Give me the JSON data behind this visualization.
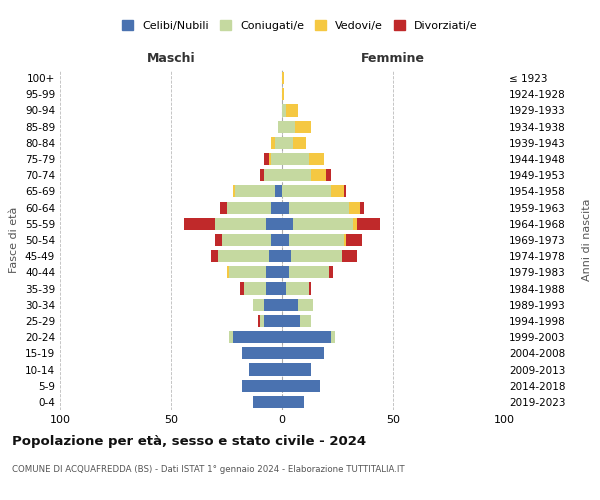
{
  "age_groups": [
    "0-4",
    "5-9",
    "10-14",
    "15-19",
    "20-24",
    "25-29",
    "30-34",
    "35-39",
    "40-44",
    "45-49",
    "50-54",
    "55-59",
    "60-64",
    "65-69",
    "70-74",
    "75-79",
    "80-84",
    "85-89",
    "90-94",
    "95-99",
    "100+"
  ],
  "birth_years": [
    "2019-2023",
    "2014-2018",
    "2009-2013",
    "2004-2008",
    "1999-2003",
    "1994-1998",
    "1989-1993",
    "1984-1988",
    "1979-1983",
    "1974-1978",
    "1969-1973",
    "1964-1968",
    "1959-1963",
    "1954-1958",
    "1949-1953",
    "1944-1948",
    "1939-1943",
    "1934-1938",
    "1929-1933",
    "1924-1928",
    "≤ 1923"
  ],
  "maschi": {
    "celibi": [
      13,
      18,
      15,
      18,
      22,
      8,
      8,
      7,
      7,
      6,
      5,
      7,
      5,
      3,
      0,
      0,
      0,
      0,
      0,
      0,
      0
    ],
    "coniugati": [
      0,
      0,
      0,
      0,
      2,
      2,
      5,
      10,
      17,
      23,
      22,
      23,
      20,
      18,
      8,
      5,
      3,
      2,
      0,
      0,
      0
    ],
    "vedovi": [
      0,
      0,
      0,
      0,
      0,
      0,
      0,
      0,
      1,
      0,
      0,
      0,
      0,
      1,
      0,
      1,
      2,
      0,
      0,
      0,
      0
    ],
    "divorziati": [
      0,
      0,
      0,
      0,
      0,
      1,
      0,
      2,
      0,
      3,
      3,
      14,
      3,
      0,
      2,
      2,
      0,
      0,
      0,
      0,
      0
    ]
  },
  "femmine": {
    "nubili": [
      10,
      17,
      13,
      19,
      22,
      8,
      7,
      2,
      3,
      4,
      3,
      5,
      3,
      0,
      0,
      0,
      0,
      0,
      0,
      0,
      0
    ],
    "coniugate": [
      0,
      0,
      0,
      0,
      2,
      5,
      7,
      10,
      18,
      23,
      25,
      27,
      27,
      22,
      13,
      12,
      5,
      6,
      2,
      0,
      0
    ],
    "vedove": [
      0,
      0,
      0,
      0,
      0,
      0,
      0,
      0,
      0,
      0,
      1,
      2,
      5,
      6,
      7,
      7,
      6,
      7,
      5,
      1,
      1
    ],
    "divorziate": [
      0,
      0,
      0,
      0,
      0,
      0,
      0,
      1,
      2,
      7,
      7,
      10,
      2,
      1,
      2,
      0,
      0,
      0,
      0,
      0,
      0
    ]
  },
  "colors": {
    "celibi_nubili": "#4a72b0",
    "coniugati": "#c5d9a0",
    "vedovi": "#f5c842",
    "divorziati": "#c0292a"
  },
  "xlim": [
    -100,
    100
  ],
  "xticks": [
    -100,
    -50,
    0,
    50,
    100
  ],
  "xticklabels": [
    "100",
    "50",
    "0",
    "50",
    "100"
  ],
  "title": "Popolazione per età, sesso e stato civile - 2024",
  "subtitle": "COMUNE DI ACQUAFREDDA (BS) - Dati ISTAT 1° gennaio 2024 - Elaborazione TUTTITALIA.IT",
  "ylabel_left": "Fasce di età",
  "ylabel_right": "Anni di nascita",
  "label_maschi": "Maschi",
  "label_femmine": "Femmine",
  "legend_labels": [
    "Celibi/Nubili",
    "Coniugati/e",
    "Vedovi/e",
    "Divorziati/e"
  ],
  "bg_color": "#ffffff",
  "grid_color": "#bbbbbb"
}
